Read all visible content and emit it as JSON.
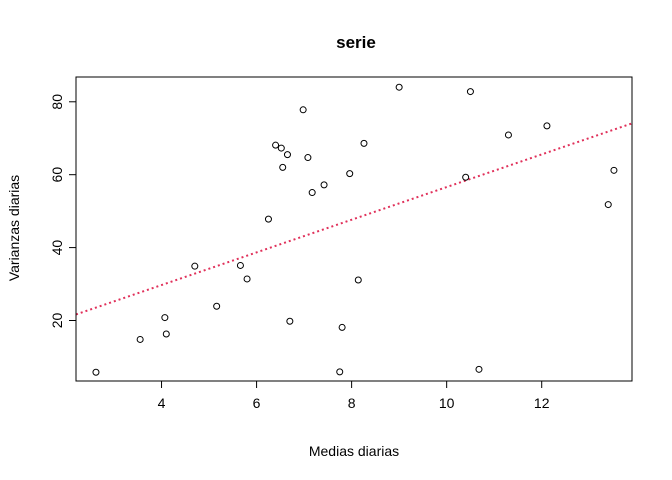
{
  "chart_data": {
    "type": "scatter",
    "title": "serie",
    "xlabel": "Medias diarias",
    "ylabel": "Varianzas diarias",
    "xlim": [
      2.2,
      13.9
    ],
    "ylim": [
      3.4,
      86.8
    ],
    "x_ticks": [
      4,
      6,
      8,
      10,
      12
    ],
    "y_ticks": [
      20,
      40,
      60,
      80
    ],
    "grid": false,
    "legend": "none",
    "points": [
      {
        "x": 2.62,
        "y": 5.8
      },
      {
        "x": 3.55,
        "y": 14.8
      },
      {
        "x": 4.07,
        "y": 20.8
      },
      {
        "x": 4.1,
        "y": 16.3
      },
      {
        "x": 4.7,
        "y": 34.9
      },
      {
        "x": 5.16,
        "y": 23.9
      },
      {
        "x": 5.66,
        "y": 35.1
      },
      {
        "x": 5.8,
        "y": 31.4
      },
      {
        "x": 6.25,
        "y": 47.8
      },
      {
        "x": 6.4,
        "y": 68.1
      },
      {
        "x": 6.52,
        "y": 67.3
      },
      {
        "x": 6.55,
        "y": 62.0
      },
      {
        "x": 6.65,
        "y": 65.5
      },
      {
        "x": 6.7,
        "y": 19.8
      },
      {
        "x": 6.98,
        "y": 77.8
      },
      {
        "x": 7.08,
        "y": 64.7
      },
      {
        "x": 7.17,
        "y": 55.1
      },
      {
        "x": 7.42,
        "y": 57.2
      },
      {
        "x": 7.75,
        "y": 5.9
      },
      {
        "x": 7.8,
        "y": 18.1
      },
      {
        "x": 7.96,
        "y": 60.3
      },
      {
        "x": 8.14,
        "y": 31.1
      },
      {
        "x": 8.26,
        "y": 68.6
      },
      {
        "x": 9.0,
        "y": 84.0
      },
      {
        "x": 10.4,
        "y": 59.3
      },
      {
        "x": 10.5,
        "y": 82.8
      },
      {
        "x": 10.68,
        "y": 6.6
      },
      {
        "x": 11.3,
        "y": 70.9
      },
      {
        "x": 12.11,
        "y": 73.4
      },
      {
        "x": 13.4,
        "y": 51.8
      },
      {
        "x": 13.52,
        "y": 61.2
      }
    ],
    "trend_line": {
      "slope": 4.48,
      "intercept": 11.8,
      "color": "#E0305A",
      "style": "dotted"
    },
    "point_color": "#000000"
  }
}
